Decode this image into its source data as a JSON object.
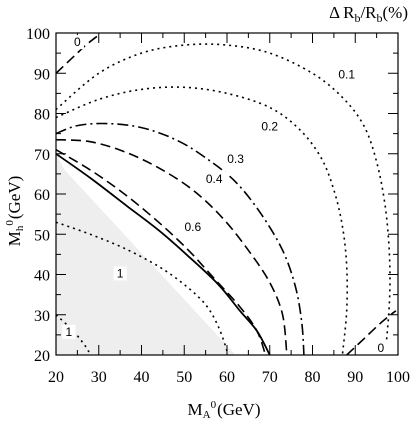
{
  "chart_data": {
    "type": "contour",
    "title": "ΔR_b/R_b(%)",
    "title_parts": {
      "delta": "Δ",
      "r1": "R",
      "sub1": "b",
      "slash": "/",
      "r2": "R",
      "sub2": "b",
      "unit": "(%)"
    },
    "xlabel": {
      "main": "M",
      "sub": "A",
      "sup": "0",
      "unit": "(GeV)"
    },
    "ylabel": {
      "main": "M",
      "sub": "h",
      "sup": "0",
      "unit": "(GeV)"
    },
    "xlim": [
      20,
      100
    ],
    "ylim": [
      20,
      100
    ],
    "x_ticks": [
      "20",
      "30",
      "40",
      "50",
      "60",
      "70",
      "80",
      "90",
      "100"
    ],
    "y_ticks": [
      "20",
      "30",
      "40",
      "50",
      "60",
      "70",
      "80",
      "90",
      "100"
    ],
    "excluded_region": {
      "color": "#eeeeee",
      "boundary": [
        [
          20,
          70
        ],
        [
          20,
          20
        ],
        [
          62,
          20
        ],
        [
          22,
          66
        ]
      ]
    },
    "contours": [
      {
        "label": "0",
        "style": "dashed",
        "segments": [
          [
            [
              20,
              90
            ],
            [
              24,
              94
            ],
            [
              27,
              97
            ],
            [
              30,
              99.5
            ]
          ],
          [
            [
              88,
              20
            ],
            [
              92,
              24
            ],
            [
              96,
              28
            ],
            [
              99.5,
              31
            ]
          ]
        ],
        "label_positions": [
          [
            25,
            97
          ],
          [
            96,
            21
          ]
        ]
      },
      {
        "label": "0.1",
        "style": "dotted",
        "segments": [
          [
            [
              20,
              81
            ],
            [
              30,
              90
            ],
            [
              40,
              95
            ],
            [
              50,
              97
            ],
            [
              60,
              97
            ],
            [
              70,
              95
            ],
            [
              80,
              90
            ],
            [
              87,
              84
            ],
            [
              92,
              77
            ],
            [
              95,
              68
            ],
            [
              97,
              57
            ],
            [
              98,
              45
            ],
            [
              98,
              33
            ],
            [
              97,
              20
            ]
          ]
        ],
        "label_positions": [
          [
            88,
            89
          ]
        ]
      },
      {
        "label": "0.2",
        "style": "dotted",
        "segments": [
          [
            [
              20,
              79
            ],
            [
              30,
              83.5
            ],
            [
              40,
              86
            ],
            [
              50,
              86.5
            ],
            [
              60,
              85
            ],
            [
              70,
              81.5
            ],
            [
              77,
              76
            ],
            [
              82,
              69
            ],
            [
              85,
              61
            ],
            [
              87,
              52
            ],
            [
              88,
              42
            ],
            [
              88,
              31
            ],
            [
              87,
              20
            ]
          ]
        ],
        "label_positions": [
          [
            70,
            76
          ]
        ]
      },
      {
        "label": "0.3",
        "style": "dashdot",
        "segments": [
          [
            [
              20,
              75
            ],
            [
              25,
              77
            ],
            [
              32,
              77.5
            ],
            [
              40,
              76.5
            ],
            [
              48,
              73.5
            ],
            [
              55,
              69
            ],
            [
              62,
              63
            ],
            [
              68,
              55
            ],
            [
              73,
              46
            ],
            [
              76,
              37
            ],
            [
              77.5,
              28
            ],
            [
              78,
              20
            ]
          ]
        ],
        "label_positions": [
          [
            62,
            68
          ]
        ]
      },
      {
        "label": "0.4",
        "style": "dashed",
        "segments": [
          [
            [
              20,
              73.5
            ],
            [
              28,
              73
            ],
            [
              36,
              70.5
            ],
            [
              44,
              66.5
            ],
            [
              52,
              61
            ],
            [
              59,
              54
            ],
            [
              65,
              46
            ],
            [
              70,
              38
            ],
            [
              73,
              30
            ],
            [
              74,
              20
            ]
          ]
        ],
        "label_positions": [
          [
            57,
            63
          ]
        ]
      },
      {
        "label": "0.6",
        "style": "dashed",
        "segments": [
          [
            [
              20,
              71
            ],
            [
              28,
              66
            ],
            [
              36,
              60
            ],
            [
              44,
              53
            ],
            [
              51,
              46
            ],
            [
              57,
              39
            ],
            [
              63,
              32
            ],
            [
              67,
              26
            ],
            [
              69,
              20
            ]
          ]
        ],
        "label_positions": [
          [
            52,
            51
          ]
        ]
      },
      {
        "label": "1",
        "style": "solid",
        "segments": [
          [
            [
              20,
              70
            ],
            [
              28,
              64
            ],
            [
              36,
              57.5
            ],
            [
              44,
              51
            ],
            [
              51,
              44.5
            ],
            [
              58,
              37.5
            ],
            [
              63,
              31
            ],
            [
              67,
              26
            ],
            [
              70,
              20
            ]
          ]
        ],
        "label_positions": []
      },
      {
        "label": "1",
        "style": "dotted",
        "segments": [
          [
            [
              20,
              53
            ],
            [
              28,
              50
            ],
            [
              36,
              46.5
            ],
            [
              44,
              42
            ],
            [
              50,
              37.5
            ],
            [
              55,
              32.5
            ],
            [
              58,
              27
            ],
            [
              60,
              21
            ],
            [
              60,
              20
            ]
          ],
          [
            [
              20,
              30
            ],
            [
              24,
              26
            ],
            [
              27,
              22
            ],
            [
              28,
              20
            ]
          ]
        ],
        "label_positions": [
          [
            35,
            39.5
          ],
          [
            23,
            25
          ]
        ]
      }
    ]
  }
}
